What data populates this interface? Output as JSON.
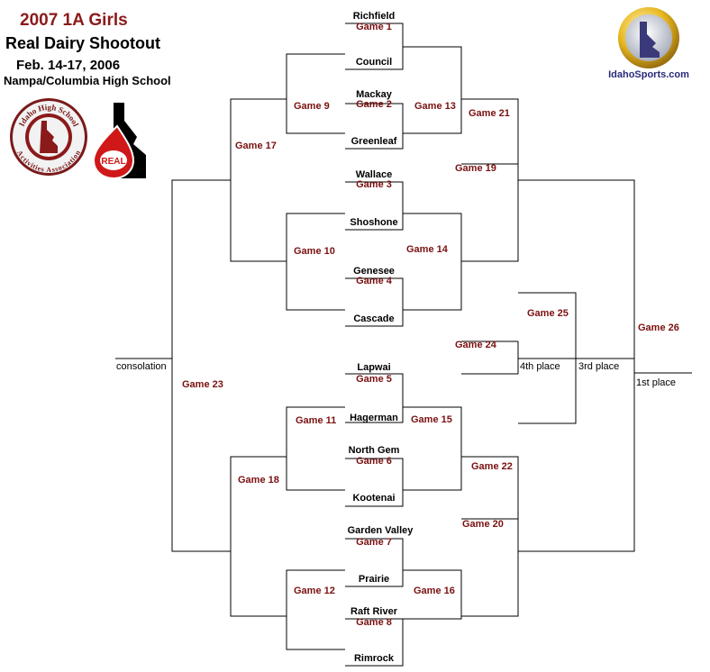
{
  "header": {
    "title": "2007 1A Girls",
    "subtitle": "Real Dairy Shootout",
    "dates": "Feb. 14-17, 2006",
    "venue": "Nampa/Columbia High School"
  },
  "logos": {
    "ihsaa_top": "Idaho High School",
    "ihsaa_bottom": "Activities Association",
    "real": "REAL",
    "idahosports": "IdahoSports.com"
  },
  "teams": {
    "t1": "Richfield",
    "t2": "Council",
    "t3": "Mackay",
    "t4": "Greenleaf",
    "t5": "Wallace",
    "t6": "Shoshone",
    "t7": "Genesee",
    "t8": "Cascade",
    "t9": "Lapwai",
    "t10": "Hagerman",
    "t11": "North Gem",
    "t12": "Kootenai",
    "t13": "Garden Valley",
    "t14": "Prairie",
    "t15": "Raft River",
    "t16": "Rimrock"
  },
  "games": {
    "g1": "Game 1",
    "g2": "Game 2",
    "g3": "Game 3",
    "g4": "Game 4",
    "g5": "Game 5",
    "g6": "Game 6",
    "g7": "Game 7",
    "g8": "Game 8",
    "g9": "Game 9",
    "g10": "Game 10",
    "g11": "Game 11",
    "g12": "Game 12",
    "g13": "Game 13",
    "g14": "Game 14",
    "g15": "Game 15",
    "g16": "Game 16",
    "g17": "Game 17",
    "g18": "Game 18",
    "g19": "Game 19",
    "g20": "Game 20",
    "g21": "Game 21",
    "g22": "Game 22",
    "g23": "Game 23",
    "g24": "Game 24",
    "g25": "Game 25",
    "g26": "Game 26"
  },
  "places": {
    "consolation": "consolation",
    "fourth": "4th place",
    "third": "3rd place",
    "first": "1st place"
  }
}
